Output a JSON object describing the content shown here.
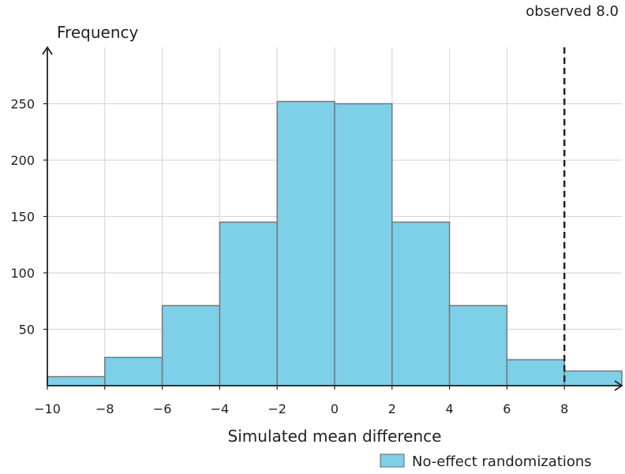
{
  "chart_data": {
    "type": "bar",
    "title": "",
    "xlabel": "Simulated mean difference",
    "ylabel": "Frequency",
    "xlim": [
      -10,
      10
    ],
    "ylim": [
      0,
      300
    ],
    "x_ticks": [
      -10,
      -8,
      -6,
      -4,
      -2,
      0,
      2,
      4,
      6,
      8
    ],
    "x_tick_labels": [
      "−10",
      "−8",
      "−6",
      "−4",
      "−2",
      "0",
      "2",
      "4",
      "6",
      "8"
    ],
    "y_ticks": [
      50,
      100,
      150,
      200,
      250
    ],
    "y_tick_labels": [
      "50",
      "100",
      "150",
      "200",
      "250"
    ],
    "bin_edges": [
      -10,
      -8,
      -6,
      -4,
      -2,
      0,
      2,
      4,
      6,
      8,
      10
    ],
    "series": [
      {
        "name": "No-effect randomizations",
        "values": [
          8,
          25,
          71,
          145,
          252,
          250,
          145,
          71,
          23,
          13
        ]
      }
    ],
    "observed_value": 8.0,
    "observed_label": "observed 8.0",
    "grid": true,
    "legend_position": "bottom-right",
    "colors": {
      "bar_fill": "#7ecfe8",
      "bar_stroke": "#777777",
      "reference_line": "#222222",
      "grid": "#d9d9d9"
    }
  }
}
